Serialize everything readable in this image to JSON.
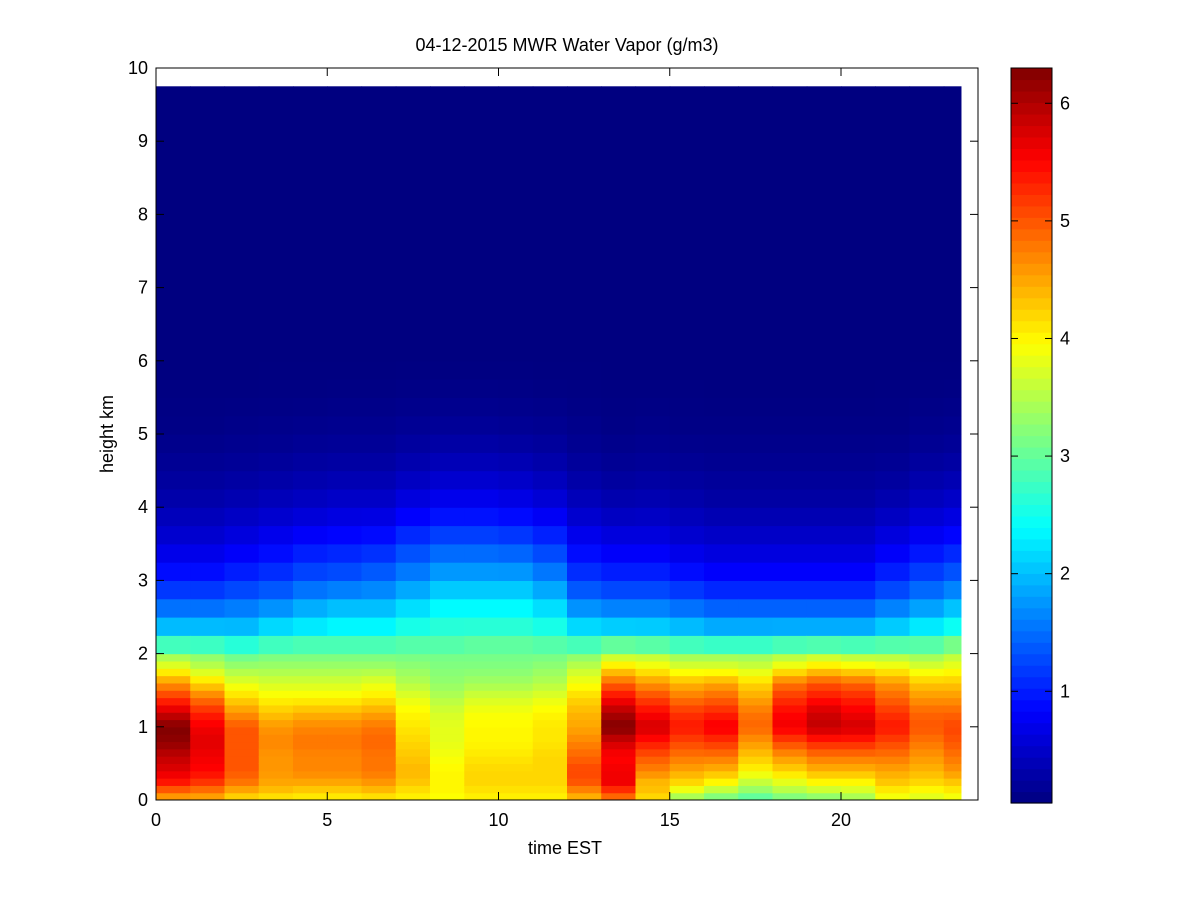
{
  "chart_data": {
    "type": "heatmap",
    "title": "04-12-2015 MWR Water Vapor (g/m3)",
    "xlabel": "time EST",
    "ylabel": "height km",
    "xlim": [
      0,
      24
    ],
    "ylim": [
      0,
      10
    ],
    "x_ticks": [
      "0",
      "5",
      "10",
      "15",
      "20"
    ],
    "y_ticks": [
      "0",
      "1",
      "2",
      "3",
      "4",
      "5",
      "6",
      "7",
      "8",
      "9",
      "10"
    ],
    "colorbar": {
      "colormap": "jet",
      "clim": [
        0.05,
        6.3
      ],
      "ticks": [
        "1",
        "2",
        "3",
        "4",
        "5",
        "6"
      ]
    },
    "grid": false,
    "data_extent": {
      "time_max": 23.5,
      "height_max": 9.75
    },
    "time_columns": [
      0,
      1,
      2,
      3,
      4,
      5,
      6,
      7,
      8,
      9,
      10,
      11,
      12,
      13,
      14,
      15,
      16,
      17,
      18,
      19,
      20,
      21,
      22,
      23
    ],
    "profile_heights_km": [
      0,
      0.1,
      0.25,
      0.4,
      0.6,
      0.8,
      1.0,
      1.2,
      1.4,
      1.6,
      1.8,
      2.0,
      2.2,
      2.4,
      2.7,
      3.0,
      3.5,
      4.0,
      4.5,
      5.0,
      5.5,
      6.0,
      9.75
    ],
    "profiles_g_m3": [
      [
        4.4,
        4.8,
        5.4,
        5.7,
        5.9,
        6.2,
        6.3,
        5.8,
        5.2,
        4.6,
        3.9,
        3.3,
        2.5,
        1.9,
        1.4,
        1.0,
        0.6,
        0.35,
        0.2,
        0.1,
        0.07,
        0.05,
        0.05
      ],
      [
        4.4,
        4.7,
        5.2,
        5.5,
        5.6,
        5.7,
        5.6,
        5.3,
        4.8,
        4.2,
        3.6,
        3.2,
        2.5,
        1.9,
        1.4,
        1.0,
        0.6,
        0.35,
        0.2,
        0.1,
        0.07,
        0.05,
        0.05
      ],
      [
        4.1,
        4.4,
        4.8,
        5.0,
        5.0,
        5.0,
        5.0,
        4.6,
        4.2,
        3.8,
        3.4,
        3.0,
        2.4,
        1.9,
        1.5,
        1.1,
        0.7,
        0.4,
        0.22,
        0.12,
        0.07,
        0.05,
        0.05
      ],
      [
        4.0,
        4.3,
        4.5,
        4.6,
        4.6,
        4.7,
        4.6,
        4.3,
        4.0,
        3.7,
        3.4,
        3.1,
        2.6,
        2.1,
        1.6,
        1.2,
        0.8,
        0.45,
        0.25,
        0.13,
        0.08,
        0.05,
        0.05
      ],
      [
        4.0,
        4.2,
        4.5,
        4.7,
        4.7,
        4.8,
        4.7,
        4.4,
        4.0,
        3.7,
        3.4,
        3.1,
        2.7,
        2.2,
        1.8,
        1.35,
        0.9,
        0.5,
        0.28,
        0.15,
        0.08,
        0.05,
        0.05
      ],
      [
        4.0,
        4.2,
        4.5,
        4.7,
        4.7,
        4.8,
        4.7,
        4.4,
        4.0,
        3.7,
        3.4,
        3.1,
        2.7,
        2.3,
        1.9,
        1.4,
        0.95,
        0.55,
        0.3,
        0.16,
        0.09,
        0.05,
        0.05
      ],
      [
        4.0,
        4.3,
        4.6,
        4.8,
        4.8,
        4.9,
        4.8,
        4.5,
        4.1,
        3.8,
        3.4,
        3.1,
        2.7,
        2.3,
        1.9,
        1.5,
        1.0,
        0.55,
        0.3,
        0.16,
        0.09,
        0.05,
        0.05
      ],
      [
        4.0,
        4.1,
        4.3,
        4.4,
        4.3,
        4.2,
        4.1,
        4.0,
        3.8,
        3.5,
        3.3,
        3.1,
        2.8,
        2.5,
        2.1,
        1.7,
        1.2,
        0.7,
        0.38,
        0.2,
        0.1,
        0.05,
        0.05
      ],
      [
        3.9,
        4.0,
        4.0,
        4.0,
        3.9,
        3.8,
        3.8,
        3.7,
        3.5,
        3.3,
        3.2,
        3.1,
        2.8,
        2.6,
        2.3,
        1.9,
        1.35,
        0.8,
        0.45,
        0.22,
        0.11,
        0.05,
        0.05
      ],
      [
        4.0,
        4.1,
        4.2,
        4.2,
        4.1,
        4.0,
        4.0,
        3.9,
        3.7,
        3.4,
        3.2,
        3.1,
        2.9,
        2.6,
        2.3,
        1.9,
        1.35,
        0.8,
        0.45,
        0.22,
        0.11,
        0.05,
        0.05
      ],
      [
        4.0,
        4.1,
        4.2,
        4.2,
        4.1,
        4.0,
        4.0,
        3.9,
        3.7,
        3.4,
        3.2,
        3.1,
        2.9,
        2.6,
        2.3,
        1.9,
        1.3,
        0.75,
        0.42,
        0.2,
        0.1,
        0.05,
        0.05
      ],
      [
        4.0,
        4.1,
        4.2,
        4.2,
        4.2,
        4.1,
        4.1,
        4.0,
        3.8,
        3.5,
        3.3,
        3.1,
        2.8,
        2.5,
        2.1,
        1.7,
        1.15,
        0.65,
        0.35,
        0.18,
        0.09,
        0.05,
        0.05
      ],
      [
        4.3,
        4.6,
        5.0,
        5.1,
        4.9,
        4.7,
        4.5,
        4.4,
        4.2,
        3.9,
        3.6,
        3.2,
        2.6,
        2.1,
        1.6,
        1.2,
        0.8,
        0.45,
        0.25,
        0.13,
        0.08,
        0.05,
        0.05
      ],
      [
        4.7,
        5.1,
        5.6,
        5.6,
        5.5,
        5.8,
        6.3,
        6.0,
        5.5,
        4.9,
        4.2,
        3.5,
        2.7,
        2.0,
        1.5,
        1.1,
        0.7,
        0.38,
        0.2,
        0.1,
        0.07,
        0.05,
        0.05
      ],
      [
        4.1,
        4.3,
        4.4,
        4.7,
        5.0,
        5.4,
        5.8,
        5.5,
        5.1,
        4.6,
        4.0,
        3.5,
        2.6,
        2.0,
        1.5,
        1.1,
        0.7,
        0.4,
        0.22,
        0.12,
        0.07,
        0.05,
        0.05
      ],
      [
        3.2,
        3.7,
        4.2,
        4.5,
        4.8,
        5.1,
        5.4,
        5.2,
        4.8,
        4.4,
        3.8,
        3.3,
        2.5,
        1.9,
        1.4,
        1.0,
        0.6,
        0.35,
        0.2,
        0.1,
        0.07,
        0.05,
        0.05
      ],
      [
        3.0,
        3.4,
        4.0,
        4.4,
        4.8,
        5.2,
        5.6,
        5.3,
        4.9,
        4.5,
        3.8,
        3.3,
        2.4,
        1.8,
        1.3,
        0.9,
        0.55,
        0.3,
        0.18,
        0.1,
        0.06,
        0.05,
        0.05
      ],
      [
        2.8,
        3.2,
        3.6,
        4.0,
        4.3,
        4.6,
        4.9,
        4.8,
        4.5,
        4.2,
        3.7,
        3.3,
        2.4,
        1.8,
        1.3,
        0.9,
        0.55,
        0.3,
        0.18,
        0.1,
        0.06,
        0.05,
        0.05
      ],
      [
        3.0,
        3.4,
        3.8,
        4.2,
        4.6,
        5.1,
        5.6,
        5.5,
        5.2,
        4.8,
        4.0,
        3.4,
        2.5,
        1.8,
        1.3,
        0.9,
        0.55,
        0.3,
        0.18,
        0.1,
        0.06,
        0.05,
        0.05
      ],
      [
        3.1,
        3.5,
        4.0,
        4.4,
        4.8,
        5.3,
        5.9,
        5.8,
        5.4,
        5.0,
        4.2,
        3.5,
        2.5,
        1.8,
        1.3,
        0.9,
        0.55,
        0.3,
        0.18,
        0.1,
        0.06,
        0.05,
        0.05
      ],
      [
        3.3,
        3.6,
        4.0,
        4.4,
        4.8,
        5.3,
        5.8,
        5.6,
        5.3,
        4.9,
        4.1,
        3.4,
        2.5,
        1.8,
        1.3,
        0.9,
        0.55,
        0.3,
        0.18,
        0.1,
        0.06,
        0.05,
        0.05
      ],
      [
        3.8,
        4.0,
        4.3,
        4.5,
        4.8,
        5.1,
        5.4,
        5.2,
        4.9,
        4.6,
        4.0,
        3.4,
        2.6,
        2.0,
        1.5,
        1.1,
        0.7,
        0.38,
        0.2,
        0.1,
        0.07,
        0.05,
        0.05
      ],
      [
        3.7,
        3.9,
        4.2,
        4.4,
        4.6,
        4.8,
        5.0,
        4.9,
        4.6,
        4.3,
        3.8,
        3.3,
        2.7,
        2.2,
        1.7,
        1.3,
        0.85,
        0.48,
        0.27,
        0.14,
        0.08,
        0.05,
        0.05
      ],
      [
        3.8,
        4.0,
        4.3,
        4.6,
        4.8,
        5.0,
        5.1,
        4.9,
        4.6,
        4.3,
        3.9,
        3.5,
        2.9,
        2.4,
        1.9,
        1.45,
        0.95,
        0.55,
        0.3,
        0.16,
        0.09,
        0.05,
        0.05
      ]
    ]
  }
}
